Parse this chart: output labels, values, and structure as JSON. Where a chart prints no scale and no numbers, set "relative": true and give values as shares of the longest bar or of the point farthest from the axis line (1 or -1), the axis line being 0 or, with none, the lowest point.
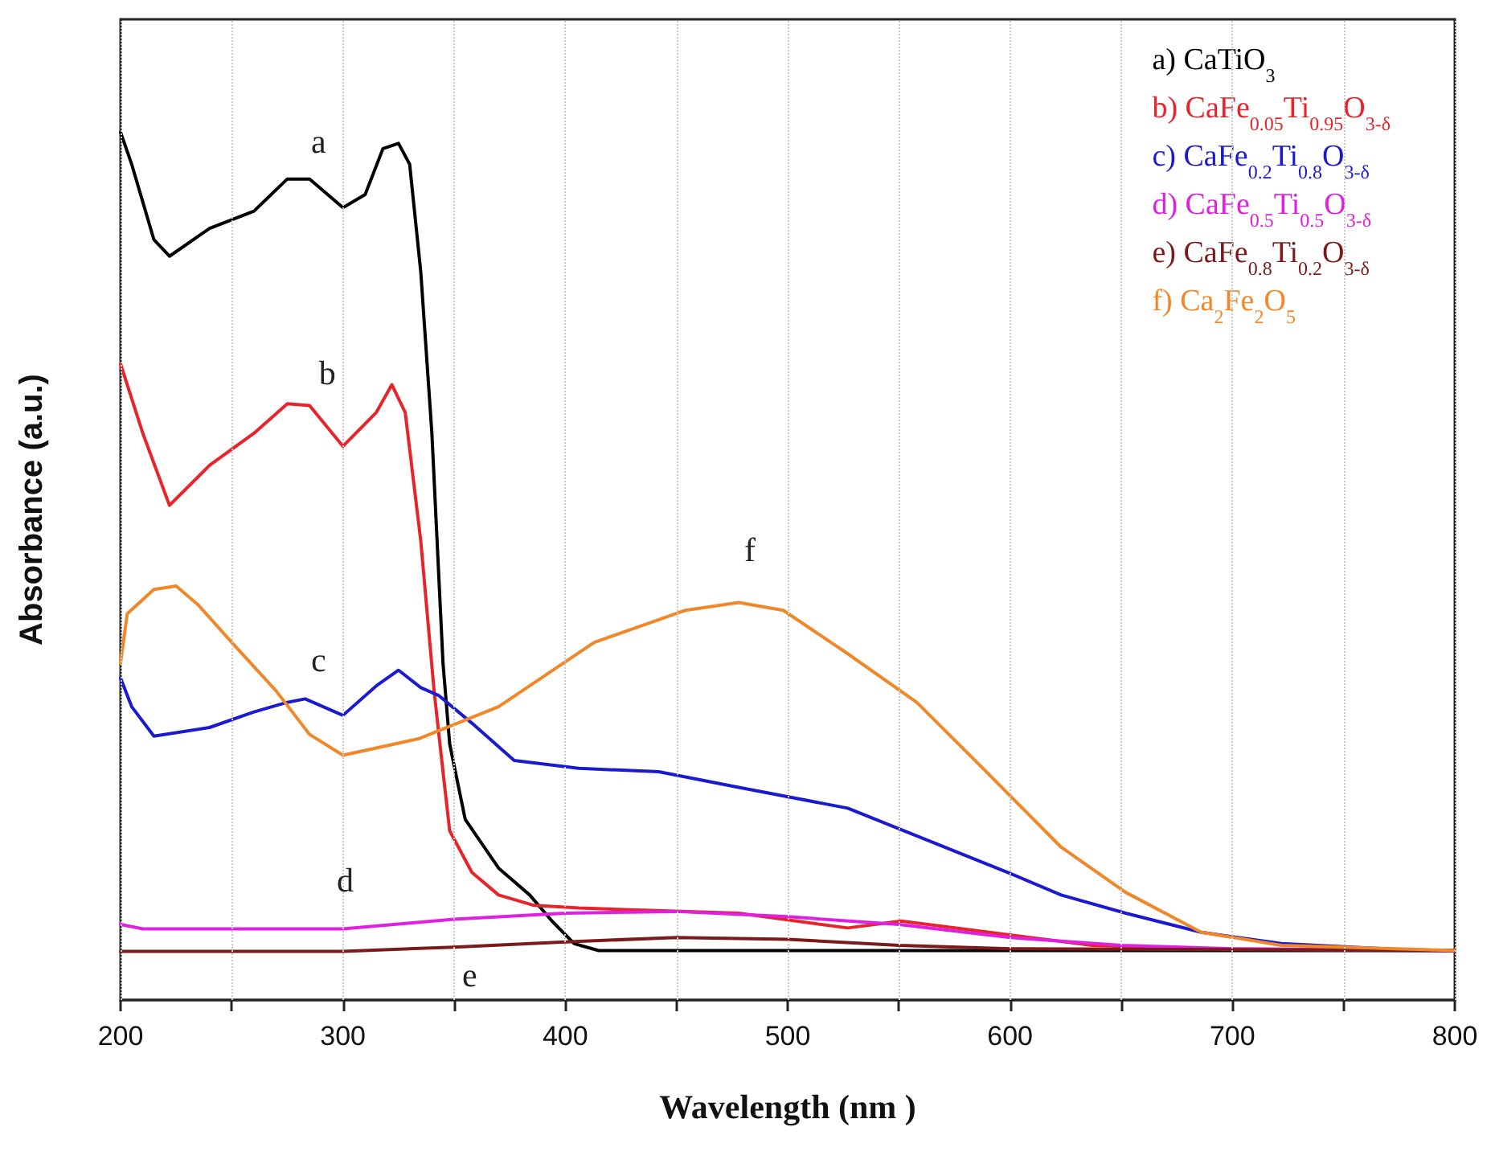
{
  "chart_data": {
    "type": "line",
    "relative": true,
    "xlabel": "Wavelength (nm )",
    "ylabel": "Absorbance (a.u.)",
    "xlim": [
      200,
      800
    ],
    "xticks": [
      200,
      {
        "value": 250,
        "label": null
      },
      300,
      {
        "value": 350,
        "label": null
      },
      400,
      {
        "value": 450,
        "label": null
      },
      500,
      {
        "value": 550,
        "label": null
      },
      600,
      {
        "value": 650,
        "label": null
      },
      700,
      {
        "value": 750,
        "label": null
      },
      800
    ],
    "grid": "x",
    "legend": "top right",
    "tick_labels": "x",
    "marker": "none",
    "line_style": "solid",
    "annotations": [
      "a",
      "b",
      "c",
      "d",
      "e",
      "f"
    ],
    "series": [
      {
        "name": "a) CaTiO$_{3}$",
        "color": "#000000",
        "x": [
          200,
          205,
          215,
          222,
          240,
          260,
          275,
          285,
          300,
          310,
          318,
          325,
          330,
          335,
          340,
          345,
          348,
          355,
          370,
          384,
          394,
          404,
          415,
          500,
          600,
          700,
          800
        ],
        "values": [
          1.0,
          0.963,
          0.876,
          0.857,
          0.889,
          0.909,
          0.946,
          0.946,
          0.913,
          0.928,
          0.981,
          0.987,
          0.963,
          0.839,
          0.653,
          0.388,
          0.295,
          0.208,
          0.152,
          0.121,
          0.091,
          0.065,
          0.057,
          0.057,
          0.057,
          0.057,
          0.057
        ]
      },
      {
        "name": "b) CaFe$_{0.05}$Ti$_{0.95}$O$_{3-δ}$",
        "color": "#e8242a",
        "x": [
          200,
          210,
          222,
          240,
          260,
          275,
          285,
          300,
          315,
          322,
          328,
          335,
          341,
          345,
          348,
          358,
          370,
          386,
          406,
          478,
          527,
          551,
          637,
          686,
          800
        ],
        "values": [
          0.733,
          0.653,
          0.57,
          0.616,
          0.653,
          0.687,
          0.685,
          0.638,
          0.677,
          0.709,
          0.677,
          0.529,
          0.356,
          0.263,
          0.195,
          0.147,
          0.121,
          0.109,
          0.106,
          0.1,
          0.083,
          0.091,
          0.063,
          0.059,
          0.057
        ]
      },
      {
        "name": "c) CaFe$_{0.2}$Ti$_{0.8}$O$_{3-δ}$",
        "color": "#1a1ad0",
        "x": [
          200,
          205,
          215,
          240,
          260,
          275,
          283,
          300,
          315,
          325,
          335,
          343,
          358,
          377,
          406,
          442,
          478,
          527,
          563,
          599,
          623,
          652,
          686,
          722,
          768
        ],
        "values": [
          0.371,
          0.338,
          0.304,
          0.314,
          0.332,
          0.343,
          0.347,
          0.328,
          0.362,
          0.38,
          0.36,
          0.351,
          0.319,
          0.276,
          0.267,
          0.263,
          0.245,
          0.221,
          0.184,
          0.147,
          0.121,
          0.1,
          0.078,
          0.065,
          0.059
        ]
      },
      {
        "name": "d) CaFe$_{0.5}$Ti$_{0.5}$O$_{3-δ}$",
        "color": "#e020e0",
        "x": [
          200,
          210,
          300,
          350,
          400,
          450,
          500,
          550,
          600,
          650,
          700,
          800
        ],
        "values": [
          0.087,
          0.082,
          0.082,
          0.093,
          0.1,
          0.102,
          0.096,
          0.087,
          0.072,
          0.063,
          0.059,
          0.057
        ]
      },
      {
        "name": "e) CaFe$_{0.8}$Ti$_{0.2}$O$_{3-δ}$",
        "color": "#7a1a1a",
        "x": [
          200,
          300,
          350,
          400,
          450,
          500,
          550,
          600,
          800
        ],
        "values": [
          0.056,
          0.056,
          0.061,
          0.067,
          0.072,
          0.07,
          0.063,
          0.059,
          0.057
        ]
      },
      {
        "name": "f) Ca$_{2}$Fe$_{2}$O$_{5}$",
        "color": "#f0882a",
        "x": [
          200,
          203,
          215,
          225,
          235,
          250,
          270,
          285,
          300,
          334,
          370,
          413,
          454,
          478,
          498,
          527,
          558,
          587,
          623,
          652,
          686,
          722,
          800
        ],
        "values": [
          0.388,
          0.445,
          0.473,
          0.477,
          0.455,
          0.412,
          0.356,
          0.306,
          0.282,
          0.301,
          0.338,
          0.412,
          0.449,
          0.458,
          0.449,
          0.399,
          0.343,
          0.269,
          0.176,
          0.124,
          0.078,
          0.063,
          0.057
        ]
      }
    ]
  }
}
